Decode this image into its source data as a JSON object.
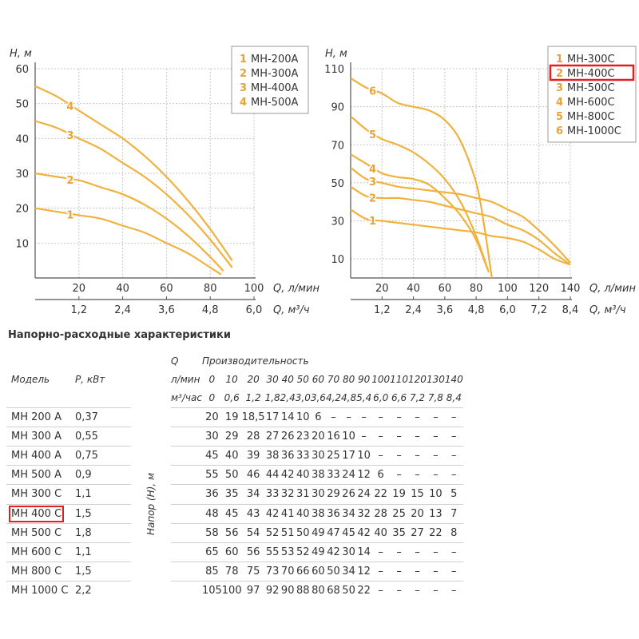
{
  "colors": {
    "curve": "#f0b23c",
    "curve_label": "#e9a233",
    "grid": "#c8c8c8",
    "axis": "#555555",
    "highlight": "#e02020"
  },
  "chart_data": [
    {
      "type": "line",
      "ylabel": "Н, м",
      "xlabel": "Q, л/мин",
      "xlabel2": "Q, м³/ч",
      "xlim": [
        0,
        100
      ],
      "ylim": [
        0,
        60
      ],
      "x_ticks": [
        "20",
        "40",
        "60",
        "80",
        "100"
      ],
      "x2_ticks": [
        "1,2",
        "2,4",
        "3,6",
        "4,8",
        "6,0"
      ],
      "y_ticks": [
        "10",
        "20",
        "30",
        "40",
        "50",
        "60"
      ],
      "legend": [
        {
          "num": "1",
          "name": "МН-200А"
        },
        {
          "num": "2",
          "name": "МН-300А"
        },
        {
          "num": "3",
          "name": "МН-400А"
        },
        {
          "num": "4",
          "name": "МН-500А"
        }
      ],
      "series": [
        {
          "name": "1",
          "x": [
            0,
            10,
            20,
            30,
            40,
            50,
            60,
            70,
            80,
            85
          ],
          "y": [
            20,
            19,
            18,
            17,
            15,
            13,
            10,
            7,
            3,
            1
          ]
        },
        {
          "name": "2",
          "x": [
            0,
            10,
            20,
            30,
            40,
            50,
            60,
            70,
            80,
            86
          ],
          "y": [
            30,
            29,
            28,
            26,
            24,
            21,
            17,
            12,
            6,
            2
          ]
        },
        {
          "name": "3",
          "x": [
            0,
            10,
            20,
            30,
            40,
            50,
            60,
            70,
            80,
            90
          ],
          "y": [
            45,
            43,
            40,
            37,
            33,
            29,
            24,
            18,
            11,
            3
          ]
        },
        {
          "name": "4",
          "x": [
            0,
            10,
            20,
            30,
            40,
            50,
            60,
            70,
            80,
            90
          ],
          "y": [
            55,
            52,
            48,
            44,
            40,
            35,
            29,
            22,
            14,
            5
          ]
        }
      ]
    },
    {
      "type": "line",
      "ylabel": "Н, м",
      "xlabel": "Q, л/мин",
      "xlabel2": "Q, м³/ч",
      "xlim": [
        0,
        140
      ],
      "ylim": [
        0,
        110
      ],
      "x_ticks": [
        "20",
        "40",
        "60",
        "80",
        "100",
        "120",
        "140"
      ],
      "x2_ticks": [
        "1,2",
        "2,4",
        "3,6",
        "4,8",
        "6,0",
        "7,2",
        "8,4"
      ],
      "y_ticks": [
        "10",
        "30",
        "50",
        "70",
        "90",
        "110"
      ],
      "legend": [
        {
          "num": "1",
          "name": "МН-300С"
        },
        {
          "num": "2",
          "name": "МН-400С"
        },
        {
          "num": "3",
          "name": "МН-500С"
        },
        {
          "num": "4",
          "name": "МН-600С"
        },
        {
          "num": "5",
          "name": "МН-800С"
        },
        {
          "num": "6",
          "name": "МН-1000С"
        }
      ],
      "series": [
        {
          "name": "1",
          "x": [
            0,
            10,
            20,
            30,
            40,
            50,
            60,
            70,
            80,
            90,
            100,
            110,
            120,
            130,
            140
          ],
          "y": [
            36,
            31,
            30,
            29,
            28,
            27,
            26,
            25,
            24,
            22,
            21,
            19,
            15,
            10,
            7
          ]
        },
        {
          "name": "2",
          "x": [
            0,
            10,
            20,
            30,
            40,
            50,
            60,
            70,
            80,
            90,
            100,
            110,
            120,
            130,
            140
          ],
          "y": [
            48,
            43,
            42,
            42,
            41,
            40,
            38,
            36,
            34,
            32,
            28,
            25,
            20,
            13,
            7
          ]
        },
        {
          "name": "3",
          "x": [
            0,
            10,
            20,
            30,
            40,
            50,
            60,
            70,
            80,
            90,
            100,
            110,
            120,
            130,
            140
          ],
          "y": [
            58,
            52,
            50,
            48,
            47,
            46,
            45,
            44,
            42,
            40,
            36,
            32,
            25,
            17,
            8
          ]
        },
        {
          "name": "4",
          "x": [
            0,
            10,
            20,
            30,
            40,
            50,
            60,
            70,
            80,
            87
          ],
          "y": [
            65,
            60,
            55,
            53,
            52,
            49,
            42,
            33,
            20,
            5
          ]
        },
        {
          "name": "5",
          "x": [
            0,
            10,
            20,
            30,
            40,
            50,
            60,
            70,
            80,
            88
          ],
          "y": [
            85,
            78,
            73,
            70,
            66,
            60,
            52,
            40,
            22,
            3
          ]
        },
        {
          "name": "6",
          "x": [
            0,
            10,
            20,
            30,
            40,
            50,
            60,
            70,
            80,
            85,
            90
          ],
          "y": [
            105,
            100,
            97,
            92,
            90,
            88,
            83,
            72,
            50,
            28,
            0
          ]
        }
      ]
    }
  ],
  "table": {
    "title": "Напорно-расходные характеристики",
    "q_label": "Q",
    "perf_label": "Производительность",
    "model_label": "Модель",
    "power_label": "Р, кВт",
    "lpm_label": "л/мин",
    "m3h_label": "м³/час",
    "head_label": "Напор (Н), м",
    "flow_lpm": [
      "0",
      "10",
      "20",
      "30",
      "40",
      "50",
      "60",
      "70",
      "80",
      "90",
      "100",
      "110",
      "120",
      "130",
      "140"
    ],
    "flow_m3h": [
      "0",
      "0,6",
      "1,2",
      "1,8",
      "2,4",
      "3,0",
      "3,6",
      "4,2",
      "4,8",
      "5,4",
      "6,0",
      "6,6",
      "7,2",
      "7,8",
      "8,4"
    ],
    "rows": [
      {
        "model": "МН 200 А",
        "power": "0,37",
        "values": [
          "20",
          "19",
          "18,5",
          "17",
          "14",
          "10",
          "6",
          "–",
          "–",
          "–",
          "–",
          "–",
          "–",
          "–",
          "–"
        ]
      },
      {
        "model": "МН 300 А",
        "power": "0,55",
        "values": [
          "30",
          "29",
          "28",
          "27",
          "26",
          "23",
          "20",
          "16",
          "10",
          "–",
          "–",
          "–",
          "–",
          "–",
          "–"
        ]
      },
      {
        "model": "МН 400 А",
        "power": "0,75",
        "values": [
          "45",
          "40",
          "39",
          "38",
          "36",
          "33",
          "30",
          "25",
          "17",
          "10",
          "–",
          "–",
          "–",
          "–",
          "–"
        ]
      },
      {
        "model": "МН 500 А",
        "power": "0,9",
        "values": [
          "55",
          "50",
          "46",
          "44",
          "42",
          "40",
          "38",
          "33",
          "24",
          "12",
          "6",
          "–",
          "–",
          "–",
          "–"
        ]
      },
      {
        "model": "МН 300 С",
        "power": "1,1",
        "values": [
          "36",
          "35",
          "34",
          "33",
          "32",
          "31",
          "30",
          "29",
          "26",
          "24",
          "22",
          "19",
          "15",
          "10",
          "5"
        ]
      },
      {
        "model": "МН 400 С",
        "power": "1,5",
        "values": [
          "48",
          "45",
          "43",
          "42",
          "41",
          "40",
          "38",
          "36",
          "34",
          "32",
          "28",
          "25",
          "20",
          "13",
          "7"
        ]
      },
      {
        "model": "МН 500 С",
        "power": "1,8",
        "values": [
          "58",
          "56",
          "54",
          "52",
          "51",
          "50",
          "49",
          "47",
          "45",
          "42",
          "40",
          "35",
          "27",
          "22",
          "8"
        ]
      },
      {
        "model": "МН 600 С",
        "power": "1,1",
        "values": [
          "65",
          "60",
          "56",
          "55",
          "53",
          "52",
          "49",
          "42",
          "30",
          "14",
          "–",
          "–",
          "–",
          "–",
          "–"
        ]
      },
      {
        "model": "МН 800 С",
        "power": "1,5",
        "values": [
          "85",
          "78",
          "75",
          "73",
          "70",
          "66",
          "60",
          "50",
          "34",
          "12",
          "–",
          "–",
          "–",
          "–",
          "–"
        ]
      },
      {
        "model": "МН 1000 С",
        "power": "2,2",
        "values": [
          "105",
          "100",
          "97",
          "92",
          "90",
          "88",
          "80",
          "68",
          "50",
          "22",
          "–",
          "–",
          "–",
          "–",
          "–"
        ]
      }
    ]
  }
}
